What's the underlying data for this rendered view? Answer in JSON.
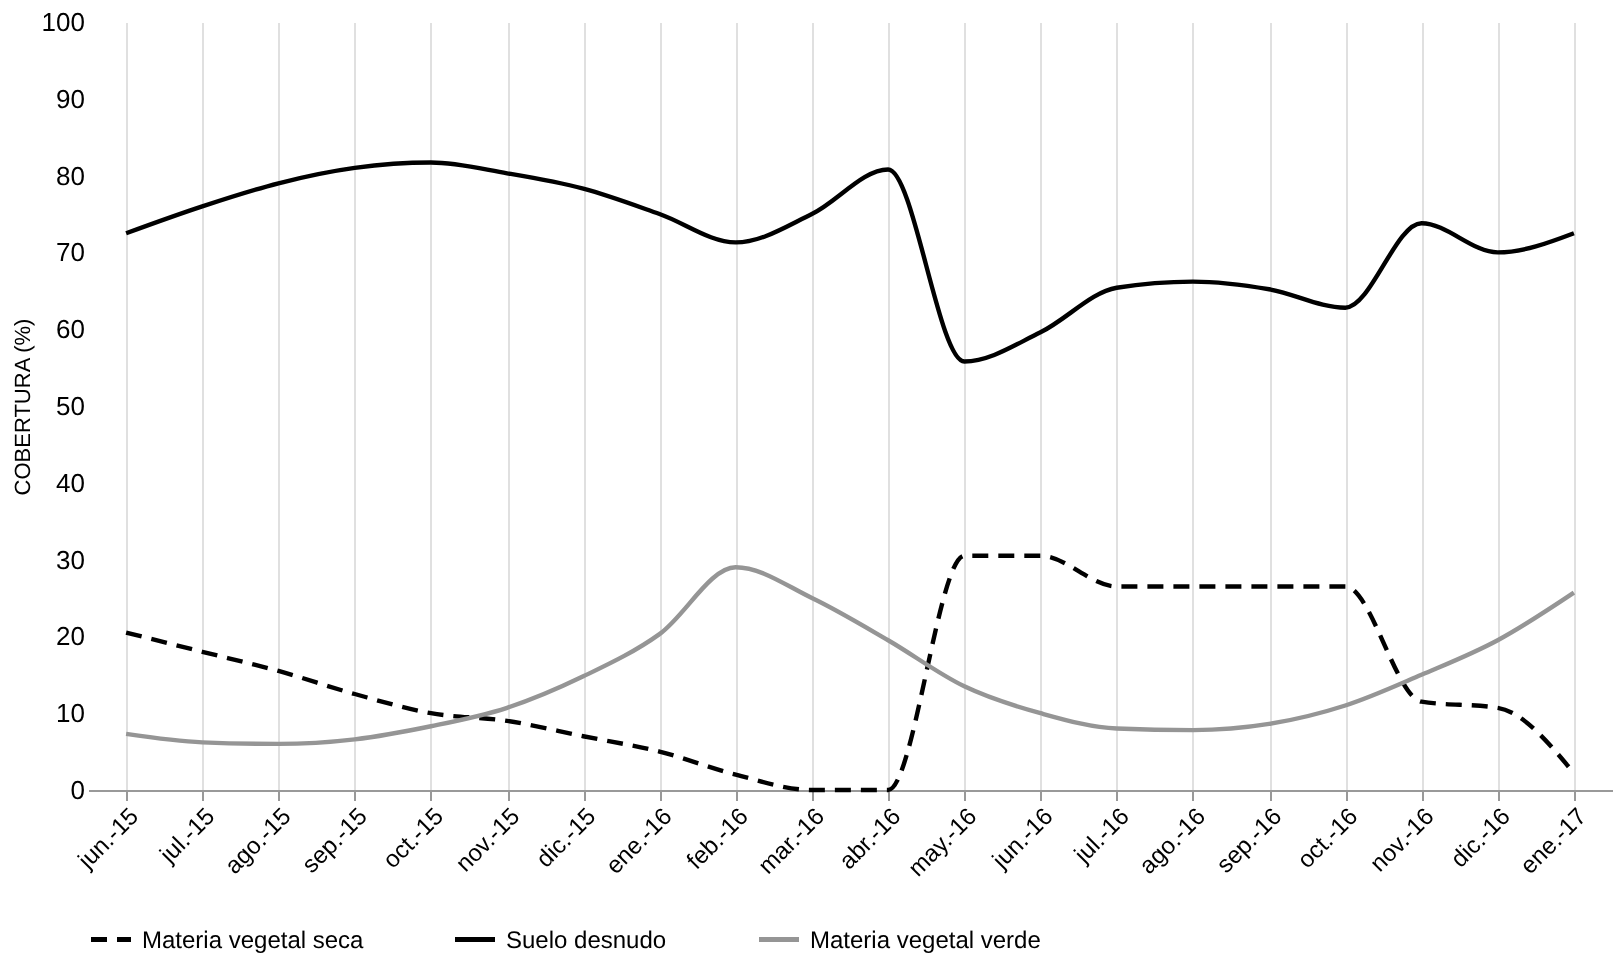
{
  "chart_data": {
    "type": "line",
    "ylabel": "COBERTURA (%)",
    "categories": [
      "jun.-15",
      "jul.-15",
      "ago.-15",
      "sep.-15",
      "oct.-15",
      "nov.-15",
      "dic.-15",
      "ene.-16",
      "feb.-16",
      "mar.-16",
      "abr.-16",
      "may.-16",
      "jun.-16",
      "jul.-16",
      "ago.-16",
      "sep.-16",
      "oct.-16",
      "nov.-16",
      "dic.-16",
      "ene.-17"
    ],
    "series": [
      {
        "name": "Materia vegetal seca",
        "color": "#000000",
        "line_style": "dashed",
        "values": [
          20.5,
          18,
          15.5,
          12.5,
          10,
          9,
          7,
          5,
          2,
          0,
          0,
          30.5,
          30.5,
          26.5,
          26.5,
          26.5,
          26.5,
          11.5,
          10.7,
          2.2
        ]
      },
      {
        "name": "Suelo desnudo",
        "color": "#000000",
        "line_style": "solid",
        "values": [
          72.5,
          76,
          79,
          81,
          81.7,
          80.3,
          78.3,
          75,
          71.3,
          75,
          80.8,
          55.8,
          59.6,
          65.4,
          66.2,
          65.2,
          62.8,
          73.8,
          70,
          72.5
        ]
      },
      {
        "name": "Materia vegetal verde",
        "color": "#959595",
        "line_style": "solid",
        "values": [
          7.3,
          6.2,
          6,
          6.6,
          8.3,
          10.7,
          14.8,
          20.3,
          29,
          25,
          19.5,
          13.5,
          10,
          8,
          7.8,
          8.6,
          11,
          15,
          19.5,
          25.7
        ]
      }
    ],
    "ylim": [
      0,
      100
    ],
    "yticks": [
      0,
      10,
      20,
      30,
      40,
      50,
      60,
      70,
      80,
      90,
      100
    ],
    "grid": "x",
    "legend": "bottom",
    "marker": "none"
  }
}
